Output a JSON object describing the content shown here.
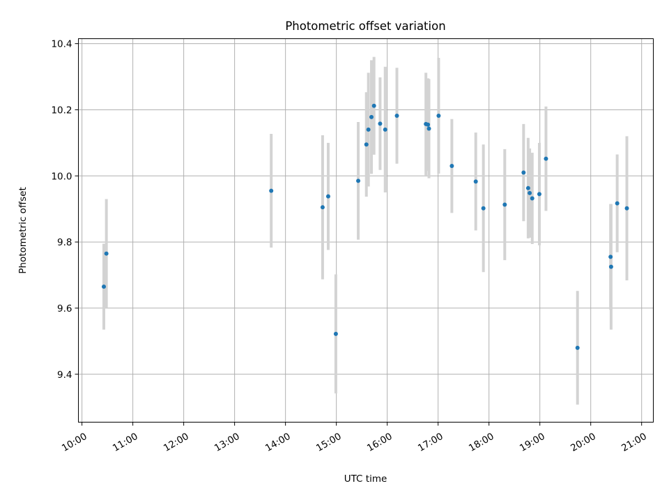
{
  "chart_data": {
    "type": "scatter",
    "title": "Photometric offset variation",
    "xlabel": "UTC time",
    "ylabel": "Photometric offset",
    "x_unit": "hours UTC",
    "xlim": [
      9.93,
      21.23
    ],
    "ylim": [
      9.255,
      10.415
    ],
    "xticks": [
      10,
      11,
      12,
      13,
      14,
      15,
      16,
      17,
      18,
      19,
      20,
      21
    ],
    "xtick_labels": [
      "10:00",
      "11:00",
      "12:00",
      "13:00",
      "14:00",
      "15:00",
      "16:00",
      "17:00",
      "18:00",
      "19:00",
      "20:00",
      "21:00"
    ],
    "yticks": [
      9.4,
      9.6,
      9.8,
      10.0,
      10.2,
      10.4
    ],
    "ytick_labels": [
      "9.4",
      "9.6",
      "9.8",
      "10.0",
      "10.2",
      "10.4"
    ],
    "grid": true,
    "marker_color": "#1f77b4",
    "errorbar_color": "#d3d3d3",
    "points": [
      {
        "x": 10.43,
        "y": 9.665,
        "err": 0.13
      },
      {
        "x": 10.48,
        "y": 9.765,
        "err": 0.165
      },
      {
        "x": 13.72,
        "y": 9.955,
        "err": 0.172
      },
      {
        "x": 14.73,
        "y": 9.905,
        "err": 0.218
      },
      {
        "x": 14.84,
        "y": 9.938,
        "err": 0.162
      },
      {
        "x": 14.99,
        "y": 9.522,
        "err": 0.18
      },
      {
        "x": 15.43,
        "y": 9.985,
        "err": 0.178
      },
      {
        "x": 15.59,
        "y": 10.095,
        "err": 0.158
      },
      {
        "x": 15.63,
        "y": 10.14,
        "err": 0.172
      },
      {
        "x": 15.69,
        "y": 10.178,
        "err": 0.172
      },
      {
        "x": 15.74,
        "y": 10.212,
        "err": 0.148
      },
      {
        "x": 15.86,
        "y": 10.158,
        "err": 0.14
      },
      {
        "x": 15.96,
        "y": 10.14,
        "err": 0.19
      },
      {
        "x": 16.19,
        "y": 10.182,
        "err": 0.145
      },
      {
        "x": 16.76,
        "y": 10.157,
        "err": 0.155
      },
      {
        "x": 16.8,
        "y": 10.155,
        "err": 0.14
      },
      {
        "x": 16.82,
        "y": 10.143,
        "err": 0.15
      },
      {
        "x": 17.01,
        "y": 10.182,
        "err": 0.175
      },
      {
        "x": 17.27,
        "y": 10.03,
        "err": 0.142
      },
      {
        "x": 17.74,
        "y": 9.983,
        "err": 0.148
      },
      {
        "x": 17.89,
        "y": 9.902,
        "err": 0.193
      },
      {
        "x": 18.31,
        "y": 9.913,
        "err": 0.168
      },
      {
        "x": 18.68,
        "y": 10.01,
        "err": 0.147
      },
      {
        "x": 18.77,
        "y": 9.963,
        "err": 0.152
      },
      {
        "x": 18.8,
        "y": 9.948,
        "err": 0.135
      },
      {
        "x": 18.85,
        "y": 9.932,
        "err": 0.138
      },
      {
        "x": 18.99,
        "y": 9.945,
        "err": 0.155
      },
      {
        "x": 19.12,
        "y": 10.052,
        "err": 0.158
      },
      {
        "x": 19.74,
        "y": 9.48,
        "err": 0.172
      },
      {
        "x": 20.39,
        "y": 9.755,
        "err": 0.16
      },
      {
        "x": 20.4,
        "y": 9.725,
        "err": 0.19
      },
      {
        "x": 20.52,
        "y": 9.917,
        "err": 0.148
      },
      {
        "x": 20.71,
        "y": 9.902,
        "err": 0.218
      }
    ]
  }
}
